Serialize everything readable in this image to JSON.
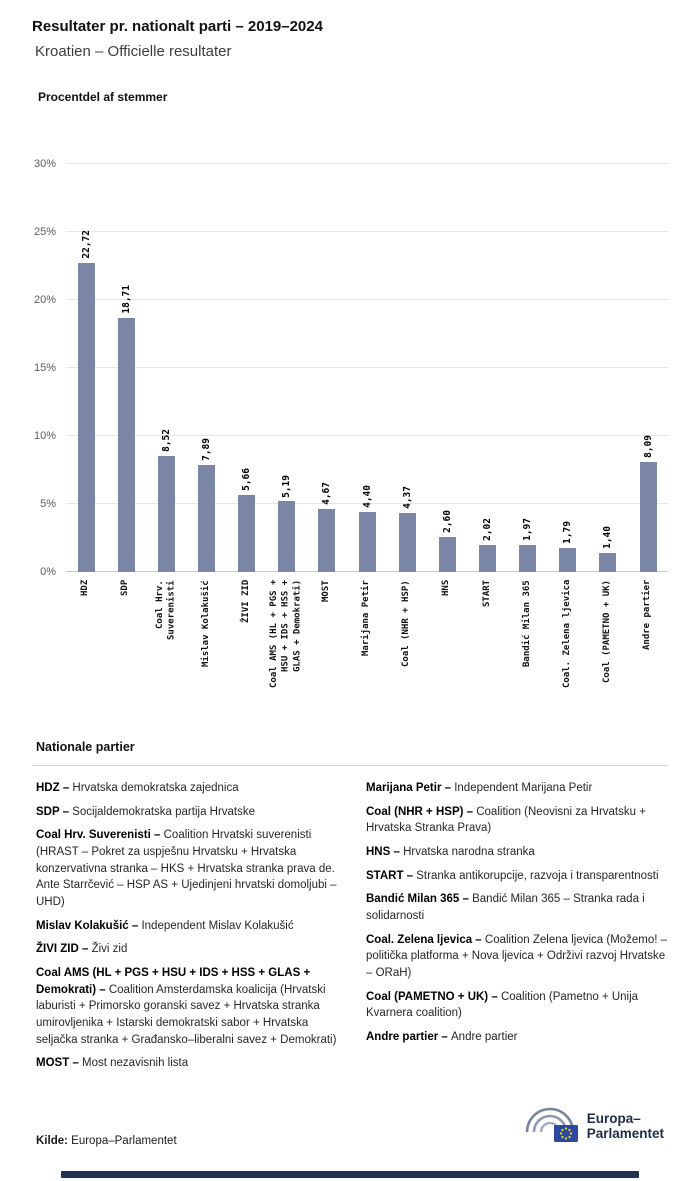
{
  "header": {
    "title": "Resultater pr. nationalt parti – 2019–2024",
    "subtitle": "Kroatien – Officielle resultater"
  },
  "chart_data": {
    "type": "bar",
    "title": "Procentdel af stemmer",
    "categories": [
      "HDZ",
      "SDP",
      "Coal Hrv.\nSuverenisti",
      "Mislav Kolakušić",
      "ŽIVI ZID",
      "Coal AMS (HL + PGS +\nHSU + IDS + HSS +\nGLAS + Demokrati)",
      "MOST",
      "Marijana Petir",
      "Coal (NHR + HSP)",
      "HNS",
      "START",
      "Bandić Milan 365",
      "Coal. Zelena ljevica",
      "Coal (PAMETNO + UK)",
      "Andre partier"
    ],
    "values": [
      22.72,
      18.71,
      8.52,
      7.89,
      5.66,
      5.19,
      4.67,
      4.4,
      4.37,
      2.6,
      2.02,
      1.97,
      1.79,
      1.4,
      8.09
    ],
    "value_labels": [
      "22,72",
      "18,71",
      "8,52",
      "7,89",
      "5,66",
      "5,19",
      "4,67",
      "4,40",
      "4,37",
      "2,60",
      "2,02",
      "1,97",
      "1,79",
      "1,40",
      "8,09"
    ],
    "xlabel": "",
    "ylabel": "Procentdel af stemmer",
    "ylim": [
      0,
      30
    ],
    "yticks": [
      "0%",
      "5%",
      "10%",
      "15%",
      "20%",
      "25%",
      "30%"
    ],
    "ytick_values": [
      0,
      5,
      10,
      15,
      20,
      25,
      30
    ],
    "grid": true,
    "legend": false,
    "bar_color": "#7b85a6"
  },
  "parties": {
    "heading": "Nationale partier",
    "left": [
      {
        "name": "HDZ –",
        "desc": "Hrvatska demokratska zajednica"
      },
      {
        "name": "SDP –",
        "desc": "Socijaldemokratska partija Hrvatske"
      },
      {
        "name": "Coal Hrv. Suverenisti –",
        "desc": "Coalition Hrvatski suverenisti (HRAST – Pokret za uspješnu Hrvatsku + Hrvatska konzervativna stranka – HKS + Hrvatska stranka prava de. Ante Starrčević – HSP AS + Ujedinjeni hrvatski domoljubi – UHD)"
      },
      {
        "name": "Mislav Kolakušić –",
        "desc": "Independent Mislav Kolakušić"
      },
      {
        "name": "ŽIVI ZID –",
        "desc": "Živi zid"
      },
      {
        "name": "Coal AMS (HL + PGS + HSU + IDS + HSS + GLAS + Demokrati) –",
        "desc": "Coalition Amsterdamska koalicija (Hrvatski laburisti + Primorsko goranski savez + Hrvatska stranka umirovljenika + Istarski demokratski sabor + Hrvatska seljačka stranka + Građansko–liberalni savez + Demokrati)"
      },
      {
        "name": "MOST –",
        "desc": "Most nezavisnih lista"
      }
    ],
    "right": [
      {
        "name": "Marijana Petir –",
        "desc": "Independent Marijana Petir"
      },
      {
        "name": "Coal (NHR + HSP) –",
        "desc": "Coalition (Neovisni za Hrvatsku + Hrvatska Stranka Prava)"
      },
      {
        "name": "HNS –",
        "desc": "Hrvatska narodna stranka"
      },
      {
        "name": "START –",
        "desc": "Stranka antikorupcije, razvoja i transparentnosti"
      },
      {
        "name": "Bandić Milan 365 –",
        "desc": "Bandić Milan 365 – Stranka rada i solidarnosti"
      },
      {
        "name": "Coal. Zelena ljevica –",
        "desc": "Coalition Zelena ljevica (Možemo! – politička platforma + Nova ljevica + Održivi razvoj Hrvatske – ORaH)"
      },
      {
        "name": "Coal (PAMETNO + UK) –",
        "desc": "Coalition (Pametno + Unija Kvarnera coalition)"
      },
      {
        "name": "Andre partier –",
        "desc": "Andre partier"
      }
    ]
  },
  "footer": {
    "source_label": "Kilde:",
    "source_text": "Europa–Parlamentet",
    "logo_text_line1": "Europa–",
    "logo_text_line2": "Parlamentet"
  },
  "colors": {
    "bar": "#7b85a6",
    "bottom_bar": "#223150",
    "logo_text": "#1f2b45"
  }
}
